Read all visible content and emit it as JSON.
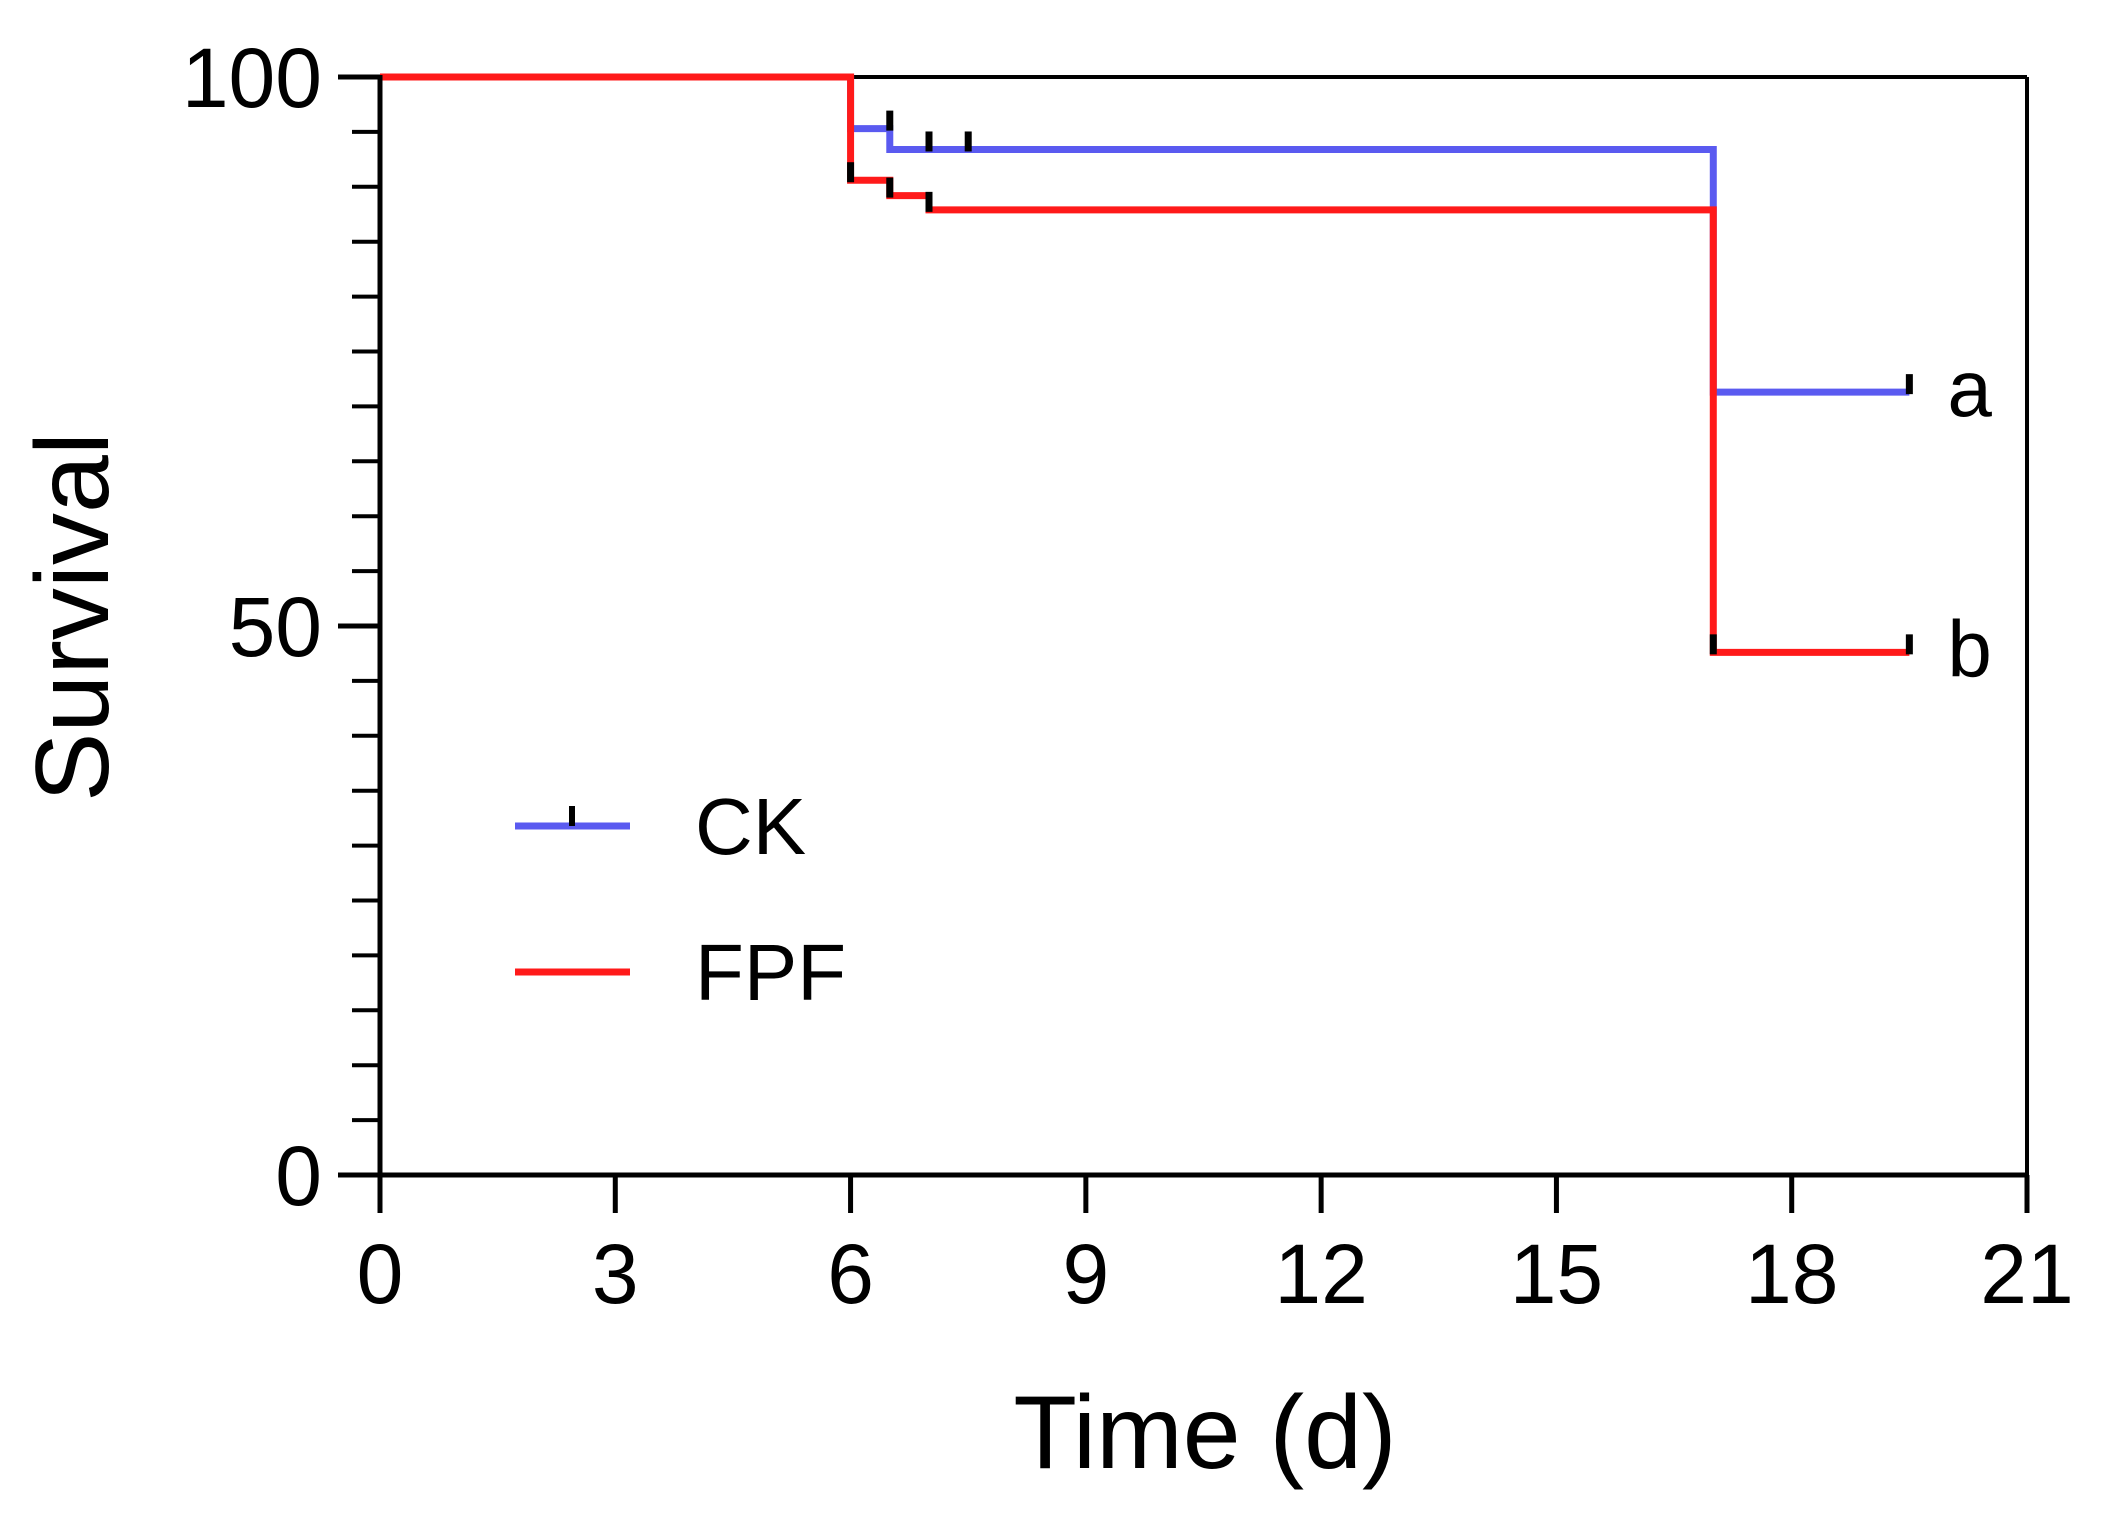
{
  "chart_data": {
    "type": "line",
    "subtype": "kaplan-meier-step",
    "title": "",
    "xlabel": "Time (d)",
    "ylabel": "Survival",
    "xlim": [
      0,
      21
    ],
    "ylim": [
      0,
      100
    ],
    "xticks": [
      0,
      3,
      6,
      9,
      12,
      15,
      18,
      21
    ],
    "yticks_labeled": [
      0,
      50,
      100
    ],
    "yticks_minor_step": 5,
    "x_tick_labels": [
      "0",
      "3",
      "6",
      "9",
      "12",
      "15",
      "18",
      "21"
    ],
    "y_tick_labels": [
      "0",
      "50",
      "100"
    ],
    "series": [
      {
        "name": "CK",
        "color": "#5a5af0",
        "steps": [
          [
            0,
            100
          ],
          [
            6,
            95.3
          ],
          [
            6.5,
            93.4
          ],
          [
            17,
            71.3
          ],
          [
            19.5,
            71.3
          ]
        ],
        "censored": [
          [
            6.5,
            95.3
          ],
          [
            7.0,
            93.4
          ],
          [
            7.5,
            93.4
          ],
          [
            19.5,
            71.3
          ]
        ],
        "significance": "a"
      },
      {
        "name": "FPF",
        "color": "#ff1a1a",
        "steps": [
          [
            0,
            100
          ],
          [
            6,
            90.6
          ],
          [
            6.5,
            89.2
          ],
          [
            7,
            87.9
          ],
          [
            17,
            47.6
          ],
          [
            19.5,
            47.6
          ]
        ],
        "censored": [
          [
            6.0,
            90.6
          ],
          [
            6.5,
            89.2
          ],
          [
            7.0,
            87.9
          ],
          [
            17.0,
            47.6
          ],
          [
            19.5,
            47.6
          ]
        ],
        "significance": "b"
      }
    ],
    "legend": {
      "position": "lower-left",
      "entries": [
        "CK",
        "FPF"
      ]
    }
  }
}
